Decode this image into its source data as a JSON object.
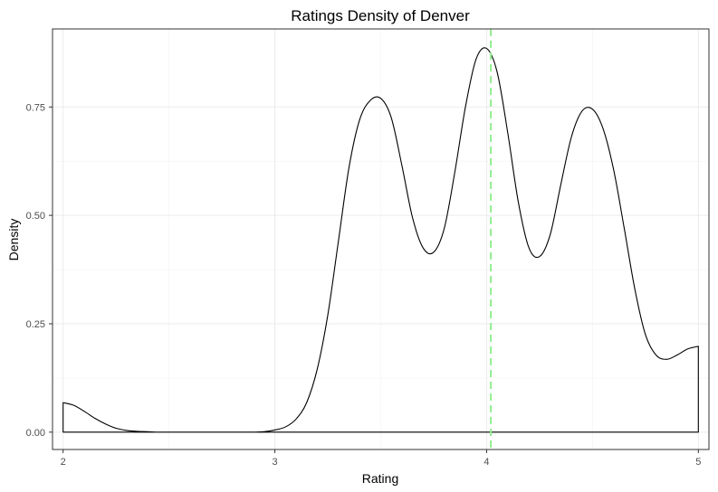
{
  "chart_data": {
    "type": "area",
    "title": "Ratings Density of Denver",
    "xlabel": "Rating",
    "ylabel": "Density",
    "xlim": [
      1.95,
      5.05
    ],
    "ylim": [
      -0.04,
      0.93
    ],
    "x_ticks": [
      2,
      3,
      4,
      5
    ],
    "x_tick_labels": [
      "2",
      "3",
      "4",
      "5"
    ],
    "y_ticks": [
      0,
      0.25,
      0.5,
      0.75
    ],
    "y_tick_labels": [
      "0.00",
      "0.25",
      "0.50",
      "0.75"
    ],
    "grid": true,
    "vline": {
      "x": 4.02,
      "color": "#90EE90",
      "style": "dashed"
    },
    "series": [
      {
        "x": [
          2.0,
          2.05,
          2.1,
          2.15,
          2.2,
          2.25,
          2.3,
          2.35,
          2.4,
          2.45,
          2.5,
          2.6,
          2.7,
          2.8,
          2.9,
          2.95,
          3.0,
          3.05,
          3.1,
          3.15,
          3.2,
          3.25,
          3.3,
          3.35,
          3.4,
          3.45,
          3.5,
          3.55,
          3.6,
          3.65,
          3.7,
          3.75,
          3.8,
          3.85,
          3.9,
          3.95,
          4.0,
          4.05,
          4.1,
          4.15,
          4.2,
          4.25,
          4.3,
          4.35,
          4.4,
          4.45,
          4.5,
          4.55,
          4.6,
          4.65,
          4.7,
          4.75,
          4.8,
          4.85,
          4.9,
          4.95,
          5.0
        ],
        "y": [
          0.068,
          0.062,
          0.048,
          0.032,
          0.019,
          0.009,
          0.004,
          0.002,
          0.001,
          0.0,
          0.0,
          0.0,
          0.0,
          0.0,
          0.0,
          0.001,
          0.005,
          0.012,
          0.03,
          0.068,
          0.145,
          0.27,
          0.44,
          0.61,
          0.72,
          0.765,
          0.77,
          0.725,
          0.615,
          0.495,
          0.425,
          0.415,
          0.47,
          0.6,
          0.75,
          0.86,
          0.885,
          0.83,
          0.69,
          0.53,
          0.425,
          0.405,
          0.455,
          0.57,
          0.68,
          0.74,
          0.745,
          0.7,
          0.605,
          0.47,
          0.33,
          0.225,
          0.178,
          0.168,
          0.178,
          0.192,
          0.198
        ]
      }
    ]
  }
}
